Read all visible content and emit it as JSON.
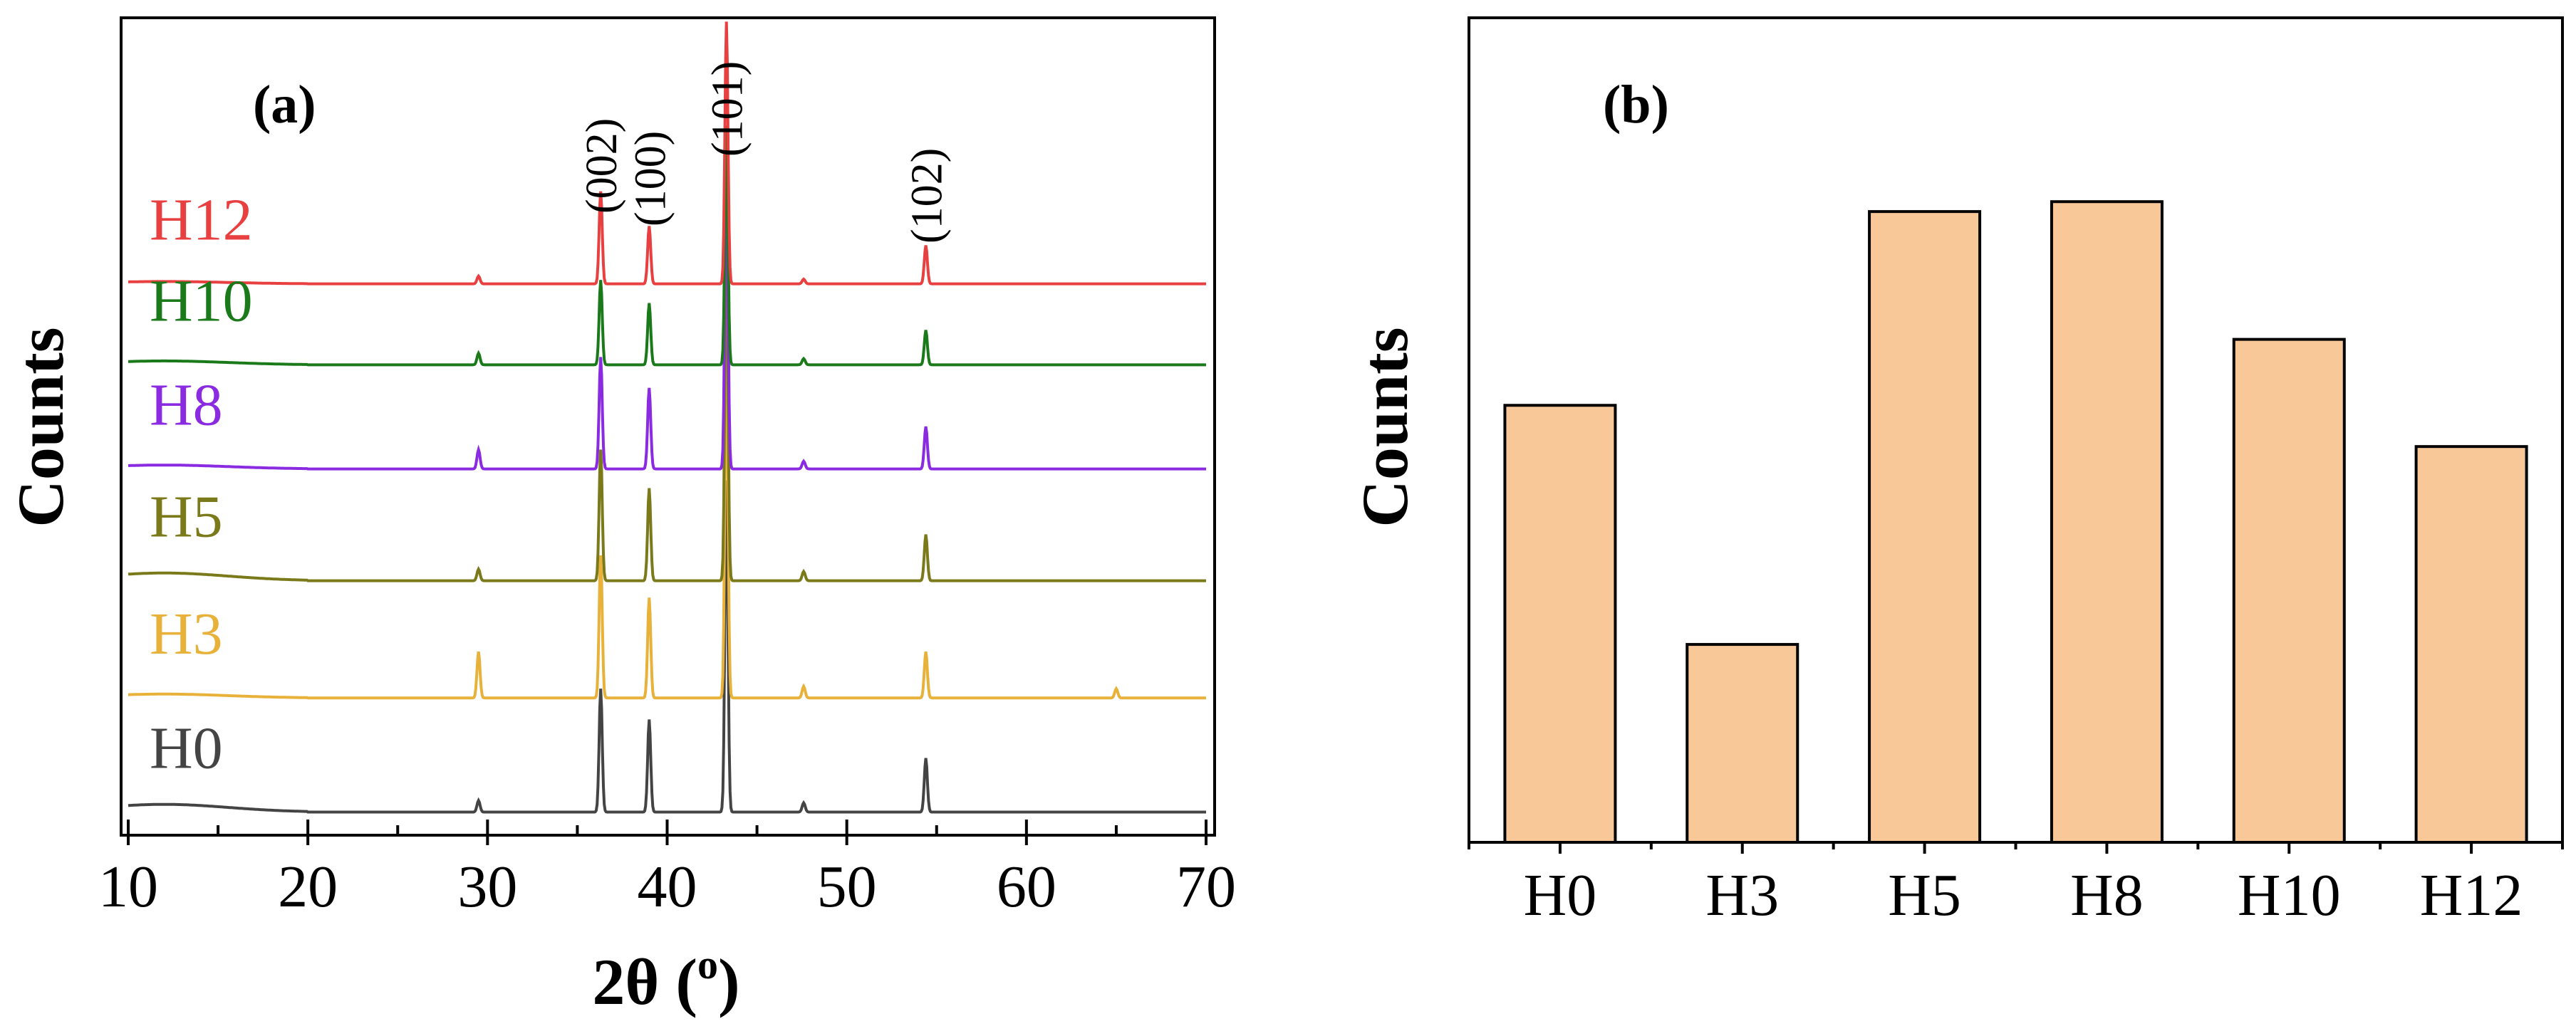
{
  "chart_data": [
    {
      "panel": "(a)",
      "type": "line",
      "title": "",
      "xlabel": "2θ (",
      "xlabel_unit": "o",
      "xlabel_close": ")",
      "ylabel": "Counts",
      "xlim": [
        10,
        70
      ],
      "xticks": [
        10,
        20,
        30,
        40,
        50,
        60,
        70
      ],
      "yticks_shown": false,
      "peak_labels": [
        {
          "label": "(002)",
          "x": 36.3
        },
        {
          "label": "(100)",
          "x": 39.0
        },
        {
          "label": "(101)",
          "x": 43.3
        },
        {
          "label": "(102)",
          "x": 54.4
        }
      ],
      "series": [
        {
          "name": "H0",
          "color": "#444444",
          "baseline": 0.0,
          "hump": 0.1,
          "peaks": [
            [
              29.5,
              0.15
            ],
            [
              36.3,
              1.6
            ],
            [
              39.0,
              1.2
            ],
            [
              43.3,
              4.3
            ],
            [
              47.6,
              0.12
            ],
            [
              54.4,
              0.7
            ]
          ]
        },
        {
          "name": "H3",
          "color": "#E8B23A",
          "baseline": 1.48,
          "hump": 0.05,
          "peaks": [
            [
              29.5,
              0.6
            ],
            [
              36.3,
              1.85
            ],
            [
              39.0,
              1.3
            ],
            [
              43.3,
              4.7
            ],
            [
              47.6,
              0.15
            ],
            [
              54.4,
              0.6
            ],
            [
              65.0,
              0.12
            ]
          ]
        },
        {
          "name": "H5",
          "color": "#7A7A1A",
          "baseline": 3.0,
          "hump": 0.1,
          "peaks": [
            [
              29.5,
              0.15
            ],
            [
              36.3,
              1.7
            ],
            [
              39.0,
              1.2
            ],
            [
              43.3,
              4.6
            ],
            [
              47.6,
              0.12
            ],
            [
              54.4,
              0.6
            ]
          ]
        },
        {
          "name": "H8",
          "color": "#8A2BE2",
          "baseline": 4.45,
          "hump": 0.05,
          "peaks": [
            [
              29.5,
              0.25
            ],
            [
              36.3,
              1.45
            ],
            [
              39.0,
              1.05
            ],
            [
              43.3,
              4.15
            ],
            [
              47.6,
              0.1
            ],
            [
              54.4,
              0.55
            ]
          ]
        },
        {
          "name": "H10",
          "color": "#1A7A1A",
          "baseline": 5.8,
          "hump": 0.05,
          "peaks": [
            [
              29.5,
              0.15
            ],
            [
              36.3,
              1.1
            ],
            [
              39.0,
              0.8
            ],
            [
              43.3,
              3.1
            ],
            [
              47.6,
              0.08
            ],
            [
              54.4,
              0.45
            ]
          ]
        },
        {
          "name": "H12",
          "color": "#E84040",
          "baseline": 6.85,
          "hump": 0.03,
          "peaks": [
            [
              29.5,
              0.1
            ],
            [
              36.3,
              1.2
            ],
            [
              39.0,
              0.75
            ],
            [
              43.3,
              3.4
            ],
            [
              47.6,
              0.06
            ],
            [
              54.4,
              0.5
            ]
          ]
        }
      ],
      "ylim": [
        -0.3,
        10.3
      ]
    },
    {
      "panel": "(b)",
      "type": "bar",
      "title": "",
      "xlabel": "",
      "ylabel": "Counts",
      "categories": [
        "H0",
        "H3",
        "H5",
        "H8",
        "H10",
        "H12"
      ],
      "values": [
        53,
        24,
        76.5,
        77.7,
        61,
        48
      ],
      "ylim": [
        0,
        100
      ],
      "bar_color": "#F9C898",
      "yticks_shown": false
    }
  ]
}
